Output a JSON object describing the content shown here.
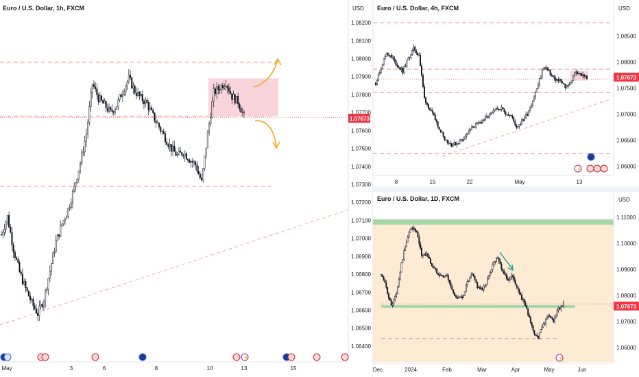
{
  "colors": {
    "up": "#26a69a",
    "down": "#ef5350",
    "wick": "#131722",
    "level": "#ef5350",
    "trend": "#f4a6a6",
    "price_tag": "#f23645",
    "zone_red": "#f7c6cf",
    "zone_green": "#a5d6a7",
    "zone_orange": "#fde8cc",
    "arrow_orange": "#f5a623",
    "arrow_teal": "#26a69a",
    "axis_text": "#131722"
  },
  "chart_data": [
    {
      "type": "line",
      "title": "Euro / U.S. Dollar, 1h, FXCM",
      "currency": "USD",
      "price_tag": "1.07673",
      "y_tick_labels": [
        "1.08200",
        "1.08100",
        "1.08000",
        "1.07900",
        "1.07800",
        "1.07700",
        "1.07600",
        "1.07500",
        "1.07400",
        "1.07300",
        "1.07200",
        "1.07100",
        "1.07000",
        "1.06900",
        "1.06800",
        "1.06700",
        "1.06600",
        "1.06500",
        "1.06400"
      ],
      "x_tick_labels": [
        "May",
        "3",
        "6",
        "8",
        "10",
        "13",
        "15"
      ],
      "ylim": [
        1.0635,
        1.0825
      ],
      "series": [
        {
          "values": [
            1.0702,
            1.0712,
            1.0694,
            1.0681,
            1.0672,
            1.0664,
            1.0658,
            1.0666,
            1.0682,
            1.0698,
            1.0708,
            1.0716,
            1.0728,
            1.0742,
            1.0758,
            1.0786,
            1.0778,
            1.0774,
            1.077,
            1.0774,
            1.0782,
            1.0789,
            1.0782,
            1.0778,
            1.0775,
            1.0768,
            1.0762,
            1.0756,
            1.075,
            1.0746,
            1.0748,
            1.0744,
            1.0741,
            1.0731,
            1.0758,
            1.0781,
            1.0784,
            1.0787,
            1.0779,
            1.0776,
            1.0768
          ]
        }
      ],
      "levels": [
        1.0798,
        1.0768,
        1.0729
      ],
      "zone": {
        "y_top": 1.0789,
        "y_bottom": 1.0768
      }
    },
    {
      "type": "line",
      "title": "Euro / U.S. Dollar, 4h, FXCM",
      "currency": "USD",
      "price_tag": "1.07673",
      "y_tick_labels": [
        "1.08500",
        "1.08000",
        "1.07500",
        "1.07000",
        "1.06500",
        "1.06000"
      ],
      "x_tick_labels": [
        "8",
        "15",
        "22",
        "May",
        "13"
      ],
      "ylim": [
        1.0585,
        1.0895
      ],
      "series": [
        {
          "values": [
            1.076,
            1.079,
            1.0818,
            1.0808,
            1.0793,
            1.0782,
            1.0806,
            1.0825,
            1.0814,
            1.073,
            1.0708,
            1.069,
            1.0668,
            1.065,
            1.0641,
            1.0644,
            1.0652,
            1.0663,
            1.0676,
            1.0681,
            1.069,
            1.0697,
            1.0706,
            1.0713,
            1.0703,
            1.0696,
            1.0676,
            1.0686,
            1.0701,
            1.0726,
            1.0756,
            1.0791,
            1.0781,
            1.0767,
            1.0764,
            1.0752,
            1.076,
            1.0782,
            1.0775,
            1.077
          ]
        }
      ],
      "levels": [
        1.0875,
        1.0786,
        1.0742,
        1.0625
      ],
      "zone": {
        "y_top": 1.0782,
        "y_bottom": 1.0764
      }
    },
    {
      "type": "line",
      "title": "Euro / U.S. Dollar, 1D, FXCM",
      "currency": "USD",
      "price_tag": "1.07673",
      "y_tick_labels": [
        "1.11000",
        "1.10000",
        "1.09000",
        "1.08000",
        "1.07000",
        "1.06000"
      ],
      "x_tick_labels": [
        "Dec",
        "2024",
        "Feb",
        "Mar",
        "Apr",
        "May",
        "Jun"
      ],
      "ylim": [
        1.0545,
        1.1145
      ],
      "series": [
        {
          "values": [
            1.088,
            1.083,
            1.076,
            1.0805,
            1.092,
            1.101,
            1.1065,
            1.104,
            1.0955,
            1.096,
            1.0915,
            1.089,
            1.0875,
            1.0875,
            1.082,
            1.079,
            1.079,
            1.085,
            1.088,
            1.0835,
            1.082,
            1.086,
            1.092,
            1.095,
            1.0895,
            1.086,
            1.0875,
            1.082,
            1.078,
            1.073,
            1.066,
            1.064,
            1.069,
            1.072,
            1.0705,
            1.075,
            1.0767
          ]
        }
      ],
      "levels": [
        1.0635
      ],
      "zone_green_top": {
        "y_top": 1.1092,
        "y_bottom": 1.1072
      },
      "zone_green_bottom": {
        "y_top": 1.0763,
        "y_bottom": 1.0753
      }
    }
  ]
}
